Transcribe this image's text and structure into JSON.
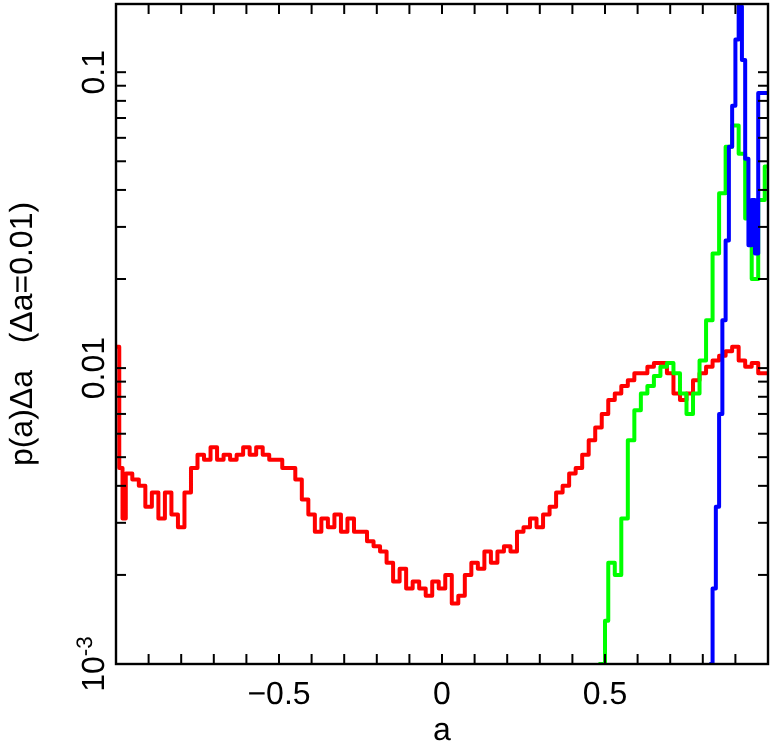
{
  "chart_data": {
    "type": "step",
    "xlabel": "a",
    "ylabel": "p(a)Δa   (Δa=0.01)",
    "log": "y",
    "grid": false,
    "line_style": "solid",
    "xlim": [
      -1,
      1
    ],
    "ylim": [
      0.001,
      0.17
    ],
    "xticks": [
      {
        "value": -0.9,
        "label": null
      },
      {
        "value": -0.8,
        "label": null
      },
      {
        "value": -0.7,
        "label": null
      },
      {
        "value": -0.6,
        "label": null
      },
      {
        "value": -0.5,
        "label": "−0.5"
      },
      {
        "value": -0.4,
        "label": null
      },
      {
        "value": -0.3,
        "label": null
      },
      {
        "value": -0.2,
        "label": null
      },
      {
        "value": -0.1,
        "label": null
      },
      0,
      {
        "value": 0.1,
        "label": null
      },
      {
        "value": 0.2,
        "label": null
      },
      {
        "value": 0.3,
        "label": null
      },
      {
        "value": 0.4,
        "label": null
      },
      0.5,
      {
        "value": 0.6,
        "label": null
      },
      {
        "value": 0.7,
        "label": null
      },
      {
        "value": 0.8,
        "label": null
      },
      {
        "value": 0.9,
        "label": null
      }
    ],
    "yticks": [
      {
        "value": 0.001,
        "label": "10$^{-3}$"
      },
      {
        "value": 0.002,
        "label": null
      },
      {
        "value": 0.003,
        "label": null
      },
      {
        "value": 0.004,
        "label": null
      },
      {
        "value": 0.005,
        "label": null
      },
      {
        "value": 0.006,
        "label": null
      },
      {
        "value": 0.007,
        "label": null
      },
      {
        "value": 0.008,
        "label": null
      },
      {
        "value": 0.009,
        "label": null
      },
      0.01,
      {
        "value": 0.02,
        "label": null
      },
      {
        "value": 0.03,
        "label": null
      },
      {
        "value": 0.04,
        "label": null
      },
      {
        "value": 0.05,
        "label": null
      },
      {
        "value": 0.06,
        "label": null
      },
      {
        "value": 0.07,
        "label": null
      },
      {
        "value": 0.08,
        "label": null
      },
      {
        "value": 0.09,
        "label": null
      },
      0.1
    ],
    "series": [
      {
        "color": "#ff0000",
        "x": [
          -1,
          -0.99,
          -0.98,
          -0.97,
          -0.95,
          -0.93,
          -0.91,
          -0.89,
          -0.87,
          -0.85,
          -0.83,
          -0.81,
          -0.79,
          -0.77,
          -0.75,
          -0.73,
          -0.71,
          -0.69,
          -0.67,
          -0.65,
          -0.63,
          -0.61,
          -0.59,
          -0.57,
          -0.55,
          -0.53,
          -0.51,
          -0.49,
          -0.47,
          -0.45,
          -0.43,
          -0.41,
          -0.39,
          -0.37,
          -0.35,
          -0.33,
          -0.31,
          -0.29,
          -0.27,
          -0.25,
          -0.23,
          -0.21,
          -0.19,
          -0.17,
          -0.15,
          -0.13,
          -0.11,
          -0.09,
          -0.07,
          -0.05,
          -0.03,
          -0.01,
          0.01,
          0.03,
          0.05,
          0.07,
          0.09,
          0.11,
          0.13,
          0.15,
          0.17,
          0.19,
          0.21,
          0.23,
          0.25,
          0.27,
          0.29,
          0.31,
          0.33,
          0.35,
          0.37,
          0.39,
          0.41,
          0.43,
          0.45,
          0.47,
          0.49,
          0.51,
          0.53,
          0.55,
          0.57,
          0.59,
          0.61,
          0.63,
          0.65,
          0.67,
          0.69,
          0.71,
          0.73,
          0.75,
          0.77,
          0.79,
          0.81,
          0.83,
          0.85,
          0.87,
          0.89,
          0.91,
          0.93,
          0.95,
          0.97,
          0.99
        ],
        "values": [
          0.0118,
          0.0046,
          0.0031,
          0.0044,
          0.0042,
          0.004,
          0.0034,
          0.0038,
          0.0031,
          0.0038,
          0.0032,
          0.0029,
          0.0038,
          0.0046,
          0.0051,
          0.0049,
          0.0054,
          0.0049,
          0.0051,
          0.0049,
          0.0051,
          0.0054,
          0.0051,
          0.0054,
          0.0051,
          0.0049,
          0.0049,
          0.0046,
          0.0046,
          0.0042,
          0.0036,
          0.0032,
          0.0028,
          0.0031,
          0.0029,
          0.0032,
          0.0028,
          0.0031,
          0.0028,
          0.0028,
          0.0026,
          0.0025,
          0.0024,
          0.0022,
          0.0019,
          0.0021,
          0.0018,
          0.0019,
          0.0018,
          0.0017,
          0.0019,
          0.0018,
          0.002,
          0.0016,
          0.0017,
          0.002,
          0.0022,
          0.0021,
          0.0024,
          0.0022,
          0.0024,
          0.0025,
          0.0024,
          0.0028,
          0.0029,
          0.0031,
          0.0029,
          0.0032,
          0.0034,
          0.0038,
          0.004,
          0.0044,
          0.0046,
          0.0051,
          0.0057,
          0.0063,
          0.007,
          0.0078,
          0.0082,
          0.0087,
          0.0091,
          0.0096,
          0.0096,
          0.0101,
          0.0104,
          0.0104,
          0.0096,
          0.0082,
          0.0078,
          0.0082,
          0.0091,
          0.0096,
          0.0101,
          0.0106,
          0.011,
          0.0114,
          0.0118,
          0.0106,
          0.0101,
          0.0104,
          0.0096,
          0.0096
        ]
      },
      {
        "color": "#00ff00",
        "x": [
          0.48,
          0.5,
          0.51,
          0.53,
          0.55,
          0.57,
          0.59,
          0.61,
          0.63,
          0.65,
          0.67,
          0.69,
          0.71,
          0.73,
          0.75,
          0.77,
          0.79,
          0.81,
          0.83,
          0.85,
          0.87,
          0.89,
          0.91,
          0.93,
          0.95,
          0.97,
          0.99
        ],
        "values": [
          0.001,
          0.0014,
          0.0022,
          0.002,
          0.0031,
          0.0057,
          0.0072,
          0.0082,
          0.0087,
          0.0094,
          0.0101,
          0.0104,
          0.0096,
          0.0082,
          0.007,
          0.0082,
          0.0106,
          0.0145,
          0.0244,
          0.039,
          0.056,
          0.066,
          0.053,
          0.032,
          0.02,
          0.037,
          0.048
        ]
      },
      {
        "color": "#0000ff",
        "x": [
          0.82,
          0.83,
          0.84,
          0.85,
          0.86,
          0.87,
          0.88,
          0.89,
          0.9,
          0.91,
          0.92,
          0.93,
          0.94,
          0.95,
          0.96,
          0.97,
          0.99
        ],
        "values": [
          0.001,
          0.0018,
          0.0034,
          0.007,
          0.0145,
          0.027,
          0.056,
          0.077,
          0.129,
          0.167,
          0.11,
          0.051,
          0.026,
          0.037,
          0.0244,
          0.085,
          0.085
        ]
      }
    ]
  }
}
